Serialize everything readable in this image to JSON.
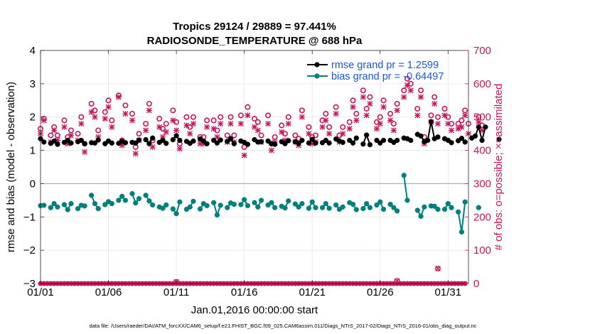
{
  "chart_data": {
    "type": "line",
    "title": "Tropics 29124 / 29889 = 97.441%",
    "subtitle": "RADIOSONDE_TEMPERATURE @ 688 hPa",
    "xlabel": "Jan.01,2016 00:00:00 start",
    "ylabel": "rmse and bias (model - observation)",
    "y2label": "# of obs: o=possible; ×=assimilated",
    "footer": "data file: /Users/raeder/DAI/ATM_forcXX/CAM6_setup/f.e21.FHIST_BGC.f09_025.CAM6assim.011/Diags_NTrS_2017-02/Diags_NTrS_2016-01/obs_diag_output.nc",
    "xlim": [
      1,
      32.5
    ],
    "ylim": [
      -3,
      4
    ],
    "y2lim": [
      0,
      700
    ],
    "xticks": [
      1,
      6,
      11,
      16,
      21,
      26,
      31
    ],
    "xtick_labels": [
      "01/01",
      "01/06",
      "01/11",
      "01/16",
      "01/21",
      "01/26",
      "01/31"
    ],
    "yticks": [
      -3,
      -2,
      -1,
      0,
      1,
      2,
      3,
      4
    ],
    "ytick_labels": [
      "−3",
      "−2",
      "−1",
      "0",
      "1",
      "2",
      "3",
      "4"
    ],
    "y2ticks": [
      0,
      100,
      200,
      300,
      400,
      500,
      600,
      700
    ],
    "y2tick_labels": [
      "0",
      "100",
      "200",
      "300",
      "400",
      "500",
      "600",
      "700"
    ],
    "grid": true,
    "legend_position": "top-right",
    "x_start": 1.0,
    "x_step": 0.25,
    "series": [
      {
        "name": "rmse grand pr = 1.2599",
        "color": "#000000",
        "marker": "circle",
        "values": [
          1.35,
          1.25,
          null,
          1.21,
          1.28,
          1.18,
          null,
          1.24,
          1.3,
          1.22,
          null,
          1.26,
          1.3,
          1.2,
          null,
          1.23,
          1.22,
          1.31,
          null,
          1.2,
          1.28,
          1.22,
          null,
          1.21,
          1.27,
          1.23,
          null,
          1.24,
          1.22,
          1.31,
          null,
          1.32,
          1.2,
          1.37,
          null,
          1.24,
          1.3,
          1.21,
          null,
          1.32,
          1.44,
          1.3,
          null,
          1.27,
          1.21,
          1.28,
          null,
          1.34,
          1.28,
          1.2,
          null,
          1.3,
          1.22,
          1.31,
          null,
          1.27,
          1.35,
          1.2,
          null,
          1.28,
          1.24,
          1.18,
          null,
          1.32,
          1.25,
          1.26,
          null,
          1.28,
          1.2,
          1.18,
          null,
          1.26,
          1.2,
          1.29,
          null,
          1.26,
          1.21,
          1.3,
          null,
          1.22,
          1.33,
          1.22,
          null,
          1.23,
          1.3,
          1.22,
          null,
          1.34,
          1.28,
          1.24,
          null,
          1.3,
          1.22,
          1.37,
          null,
          1.19,
          1.46,
          1.17,
          null,
          1.3,
          1.22,
          1.3,
          null,
          1.3,
          1.24,
          1.3,
          null,
          1.37,
          1.35,
          1.3,
          null,
          1.48,
          1.43,
          1.26,
          1.3,
          1.86,
          1.35,
          1.4,
          null,
          1.35,
          1.3,
          1.23,
          null,
          1.29,
          1.36,
          1.25,
          null,
          1.37,
          1.43,
          1.7,
          1.3,
          1.7,
          null,
          null,
          null,
          1.33,
          null
        ]
      },
      {
        "name": "bias grand pr = -0.64497",
        "color": "#00807d",
        "marker": "circle",
        "values": [
          -0.66,
          -0.65,
          null,
          -0.72,
          -0.6,
          -0.7,
          null,
          -0.63,
          -0.78,
          -0.6,
          null,
          -0.75,
          -0.65,
          -0.67,
          null,
          -0.35,
          -0.6,
          -0.75,
          null,
          -0.63,
          -0.54,
          -0.6,
          null,
          -0.5,
          -0.38,
          -0.5,
          null,
          -0.3,
          -0.58,
          -0.45,
          null,
          -0.35,
          -0.52,
          -0.64,
          null,
          -0.7,
          -0.74,
          -0.64,
          null,
          -0.76,
          -0.9,
          -0.55,
          null,
          -0.77,
          -0.7,
          -0.53,
          null,
          -0.76,
          -0.6,
          -0.66,
          null,
          -0.57,
          -0.94,
          -0.65,
          null,
          -0.72,
          -0.58,
          -0.62,
          null,
          -0.63,
          -0.48,
          -0.66,
          null,
          -0.57,
          -0.7,
          -0.5,
          null,
          -0.64,
          -0.57,
          -0.72,
          null,
          -0.68,
          -0.73,
          -0.52,
          null,
          -0.61,
          -0.7,
          -0.6,
          null,
          -0.74,
          -0.55,
          -0.72,
          null,
          -0.72,
          -0.6,
          -0.74,
          null,
          -0.64,
          -0.77,
          -0.7,
          null,
          -0.57,
          -0.62,
          -0.78,
          null,
          -0.75,
          -0.6,
          -0.72,
          null,
          -0.64,
          -0.55,
          -0.77,
          null,
          -0.62,
          -0.72,
          -0.82,
          null,
          0.25,
          -0.5,
          null,
          null,
          -0.8,
          -0.98,
          -0.7,
          null,
          -0.67,
          -0.68,
          -0.77,
          null,
          -0.77,
          -0.6,
          -0.72,
          null,
          -0.85,
          -1.45,
          -0.55,
          null,
          null,
          null,
          -0.72,
          null
        ]
      }
    ],
    "obs_possible": {
      "name": "possible",
      "marker": "o",
      "color": "#c8145a",
      "values": [
        465,
        495,
        null,
        445,
        470,
        445,
        null,
        490,
        440,
        460,
        null,
        450,
        500,
        420,
        null,
        540,
        520,
        460,
        null,
        515,
        550,
        490,
        null,
        565,
        430,
        535,
        null,
        510,
        410,
        450,
        null,
        480,
        540,
        430,
        null,
        495,
        465,
        480,
        null,
        520,
        485,
        420,
        null,
        500,
        470,
        500,
        null,
        440,
        440,
        490,
        null,
        490,
        460,
        500,
        null,
        445,
        500,
        445,
        null,
        505,
        410,
        530,
        null,
        495,
        485,
        445,
        null,
        505,
        420,
        440,
        null,
        475,
        450,
        500,
        null,
        445,
        435,
        520,
        null,
        470,
        440,
        445,
        null,
        490,
        510,
        470,
        null,
        530,
        445,
        470,
        null,
        485,
        550,
        510,
        null,
        580,
        525,
        560,
        null,
        485,
        500,
        550,
        null,
        510,
        480,
        540,
        null,
        580,
        615,
        600,
        null,
        525,
        580,
        440,
        null,
        505,
        560,
        500,
        null,
        525,
        500,
        480,
        null,
        480,
        490,
        520,
        480,
        null,
        null,
        500,
        475
      ]
    },
    "obs_assimilated": {
      "name": "assimilated",
      "marker": "x",
      "color": "#c8145a",
      "values": [
        450,
        490,
        null,
        425,
        460,
        430,
        null,
        470,
        420,
        445,
        null,
        430,
        480,
        395,
        null,
        515,
        500,
        440,
        null,
        495,
        530,
        470,
        null,
        560,
        415,
        510,
        null,
        490,
        390,
        430,
        null,
        460,
        520,
        410,
        null,
        470,
        440,
        455,
        null,
        490,
        460,
        405,
        null,
        475,
        450,
        480,
        null,
        420,
        420,
        470,
        null,
        465,
        440,
        480,
        null,
        425,
        480,
        425,
        null,
        480,
        385,
        505,
        null,
        470,
        460,
        425,
        null,
        480,
        400,
        425,
        null,
        455,
        430,
        480,
        null,
        425,
        415,
        500,
        null,
        450,
        420,
        425,
        null,
        470,
        490,
        450,
        null,
        510,
        425,
        450,
        null,
        465,
        530,
        490,
        null,
        560,
        505,
        540,
        null,
        465,
        480,
        530,
        null,
        490,
        460,
        520,
        null,
        560,
        595,
        580,
        null,
        505,
        560,
        420,
        null,
        485,
        540,
        480,
        null,
        505,
        480,
        460,
        null,
        465,
        470,
        505,
        450,
        null,
        null,
        485,
        460
      ]
    },
    "obs_rejected_zero_line": {
      "name": "zero counts",
      "marker": "circle",
      "color": "#c8145a",
      "values": [
        0
      ],
      "special": [
        {
          "x": 11.0,
          "y2": 5
        },
        {
          "x": 27.25,
          "y2": 8
        },
        {
          "x": 30.25,
          "y2": 45
        }
      ]
    }
  }
}
